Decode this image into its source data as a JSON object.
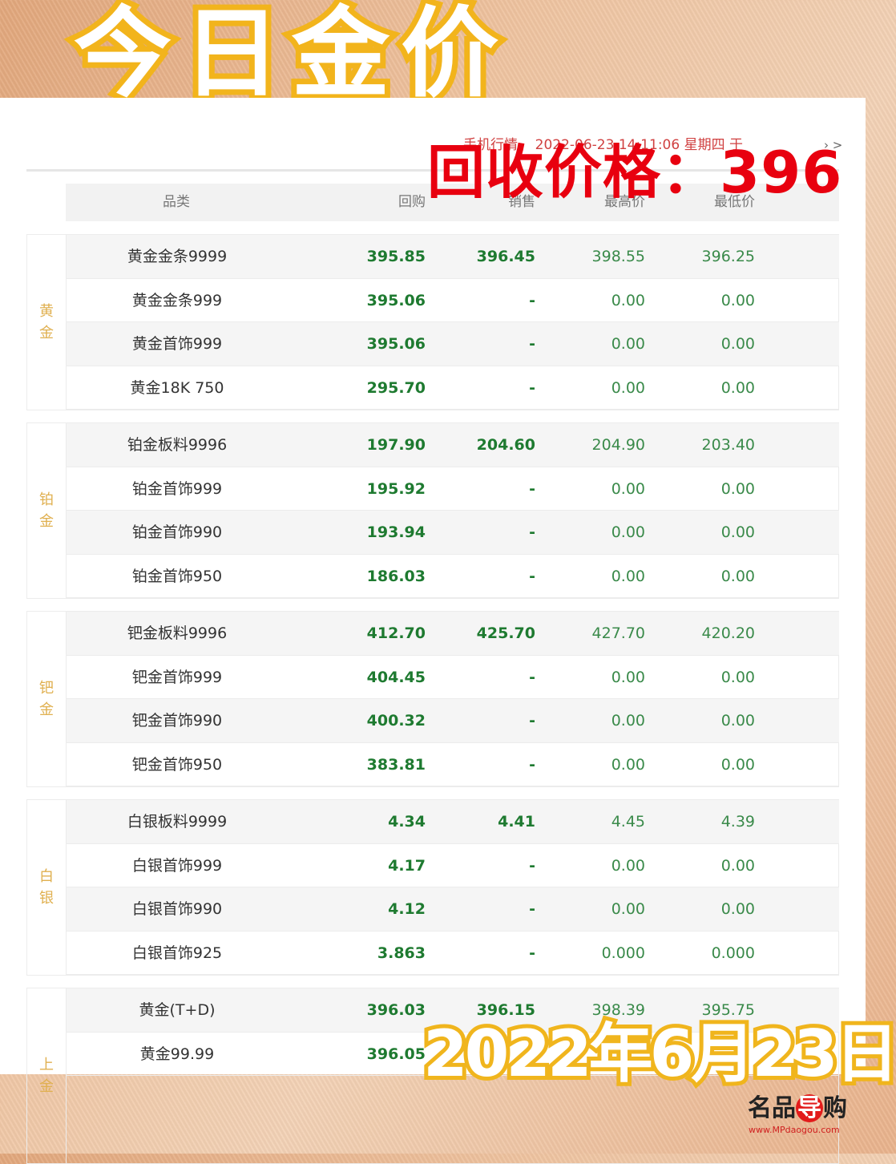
{
  "title": "今日金价",
  "ticker": {
    "label": "手机行情",
    "datetime": "2022-06-23 14:11:06 星期四 于",
    "arrow": "› >"
  },
  "overlay": "回收价格：396",
  "headers": [
    "品类",
    "回购",
    "销售",
    "最高价",
    "最低价"
  ],
  "groups": [
    {
      "category": "黄\n金",
      "rows": [
        [
          "黄金金条9999",
          "395.85",
          "396.45",
          "398.55",
          "396.25"
        ],
        [
          "黄金金条999",
          "395.06",
          "-",
          "0.00",
          "0.00"
        ],
        [
          "黄金首饰999",
          "395.06",
          "-",
          "0.00",
          "0.00"
        ],
        [
          "黄金18K 750",
          "295.70",
          "-",
          "0.00",
          "0.00"
        ]
      ]
    },
    {
      "category": "铂\n金",
      "rows": [
        [
          "铂金板料9996",
          "197.90",
          "204.60",
          "204.90",
          "203.40"
        ],
        [
          "铂金首饰999",
          "195.92",
          "-",
          "0.00",
          "0.00"
        ],
        [
          "铂金首饰990",
          "193.94",
          "-",
          "0.00",
          "0.00"
        ],
        [
          "铂金首饰950",
          "186.03",
          "-",
          "0.00",
          "0.00"
        ]
      ]
    },
    {
      "category": "钯\n金",
      "rows": [
        [
          "钯金板料9996",
          "412.70",
          "425.70",
          "427.70",
          "420.20"
        ],
        [
          "钯金首饰999",
          "404.45",
          "-",
          "0.00",
          "0.00"
        ],
        [
          "钯金首饰990",
          "400.32",
          "-",
          "0.00",
          "0.00"
        ],
        [
          "钯金首饰950",
          "383.81",
          "-",
          "0.00",
          "0.00"
        ]
      ]
    },
    {
      "category": "白\n银",
      "rows": [
        [
          "白银板料9999",
          "4.34",
          "4.41",
          "4.45",
          "4.39"
        ],
        [
          "白银首饰999",
          "4.17",
          "-",
          "0.00",
          "0.00"
        ],
        [
          "白银首饰990",
          "4.12",
          "-",
          "0.00",
          "0.00"
        ],
        [
          "白银首饰925",
          "3.863",
          "-",
          "0.000",
          "0.000"
        ]
      ]
    },
    {
      "category": "上\n金",
      "rows": [
        [
          "黄金(T+D)",
          "396.03",
          "396.15",
          "398.39",
          "395.75"
        ],
        [
          "黄金99.99",
          "396.05",
          "",
          "",
          ""
        ]
      ]
    }
  ],
  "date_overlay": "2022年6月23日",
  "logo": {
    "text_a": "名品",
    "text_b": "导",
    "text_c": "购",
    "url": "www.MPdaogou.com"
  }
}
